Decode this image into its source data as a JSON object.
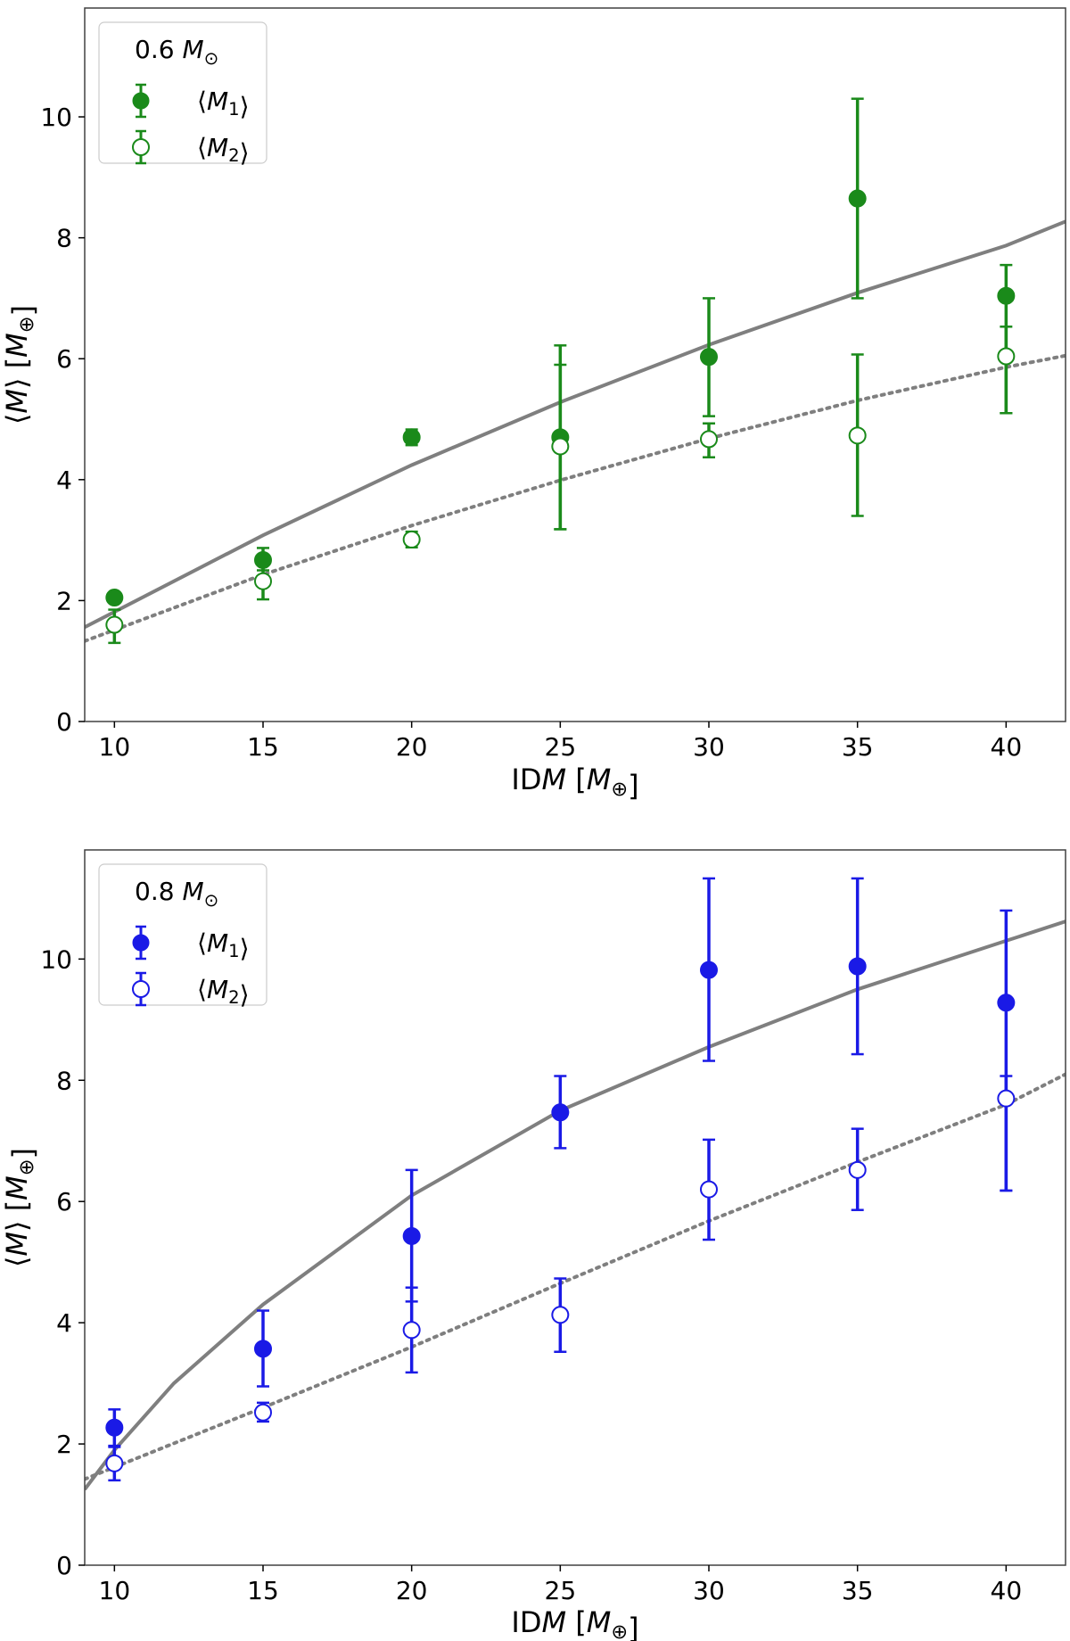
{
  "chart_data": [
    {
      "type": "scatter",
      "panel": "top",
      "legend_title": "0.6 M⊙",
      "legend_position": "top-left",
      "xlabel": "IDM [M⊕]",
      "ylabel": "⟨M⟩ [M⊕]",
      "xlim": [
        9,
        42
      ],
      "ylim": [
        0,
        11.8
      ],
      "xticks": [
        10,
        15,
        20,
        25,
        30,
        35,
        40
      ],
      "yticks": [
        0,
        2,
        4,
        6,
        8,
        10
      ],
      "color": "#1a8a1a",
      "series": [
        {
          "name": "⟨M1⟩",
          "marker": "filled-circle",
          "x": [
            10,
            15,
            20,
            25,
            30,
            35,
            40
          ],
          "y": [
            2.05,
            2.67,
            4.7,
            4.7,
            6.03,
            8.65,
            7.04
          ],
          "err_low": [
            2.0,
            2.5,
            4.57,
            3.18,
            5.05,
            7.0,
            5.1
          ],
          "err_high": [
            2.1,
            2.87,
            4.83,
            6.22,
            7.0,
            10.3,
            7.55
          ]
        },
        {
          "name": "⟨M2⟩",
          "marker": "open-circle",
          "x": [
            10,
            15,
            20,
            25,
            30,
            35,
            40
          ],
          "y": [
            1.6,
            2.32,
            3.01,
            4.55,
            4.67,
            4.73,
            6.04
          ],
          "err_low": [
            1.3,
            2.02,
            2.88,
            3.18,
            4.37,
            3.4,
            5.1
          ],
          "err_high": [
            1.85,
            2.62,
            3.14,
            5.9,
            4.93,
            6.07,
            6.53
          ]
        }
      ],
      "fits": [
        {
          "style": "solid",
          "color": "#7f7f7f",
          "x": [
            9,
            15,
            20,
            25,
            30,
            35,
            40,
            42
          ],
          "y": [
            1.56,
            3.08,
            4.24,
            5.28,
            6.23,
            7.09,
            7.87,
            8.27
          ]
        },
        {
          "style": "dotted",
          "color": "#7f7f7f",
          "x": [
            9,
            15,
            20,
            25,
            30,
            35,
            40,
            42
          ],
          "y": [
            1.33,
            2.43,
            3.24,
            3.99,
            4.68,
            5.31,
            5.86,
            6.05
          ]
        }
      ]
    },
    {
      "type": "scatter",
      "panel": "bottom",
      "legend_title": "0.8 M⊙",
      "legend_position": "top-left",
      "xlabel": "IDM [M⊕]",
      "ylabel": "⟨M⟩ [M⊕]",
      "xlim": [
        9,
        42
      ],
      "ylim": [
        0,
        11.8
      ],
      "xticks": [
        10,
        15,
        20,
        25,
        30,
        35,
        40
      ],
      "yticks": [
        0,
        2,
        4,
        6,
        8,
        10
      ],
      "color": "#1a1ae6",
      "series": [
        {
          "name": "⟨M1⟩",
          "marker": "filled-circle",
          "x": [
            10,
            15,
            20,
            25,
            30,
            35,
            40
          ],
          "y": [
            2.27,
            3.57,
            5.43,
            7.47,
            9.82,
            9.88,
            9.28
          ],
          "err_low": [
            1.97,
            2.95,
            4.35,
            6.88,
            8.32,
            8.43,
            6.18
          ],
          "err_high": [
            2.57,
            4.2,
            6.52,
            8.07,
            11.33,
            11.33,
            10.8
          ]
        },
        {
          "name": "⟨M2⟩",
          "marker": "open-circle",
          "x": [
            10,
            15,
            20,
            25,
            30,
            35,
            40
          ],
          "y": [
            1.68,
            2.52,
            3.88,
            4.13,
            6.2,
            6.52,
            7.7
          ],
          "err_low": [
            1.4,
            2.37,
            3.18,
            3.52,
            5.37,
            5.86,
            6.18
          ],
          "err_high": [
            1.95,
            2.68,
            4.58,
            4.73,
            7.02,
            7.2,
            8.07
          ]
        }
      ],
      "fits": [
        {
          "style": "solid",
          "color": "#7f7f7f",
          "x": [
            9,
            10,
            12,
            15,
            20,
            25,
            30,
            35,
            40,
            42
          ],
          "y": [
            1.25,
            1.9,
            3.0,
            4.3,
            6.1,
            7.5,
            8.55,
            9.5,
            10.3,
            10.62
          ]
        },
        {
          "style": "dotted",
          "color": "#7f7f7f",
          "x": [
            9,
            15,
            20,
            25,
            30,
            35,
            40,
            42
          ],
          "y": [
            1.42,
            2.6,
            3.6,
            4.65,
            5.68,
            6.65,
            7.6,
            8.1
          ]
        }
      ]
    }
  ]
}
